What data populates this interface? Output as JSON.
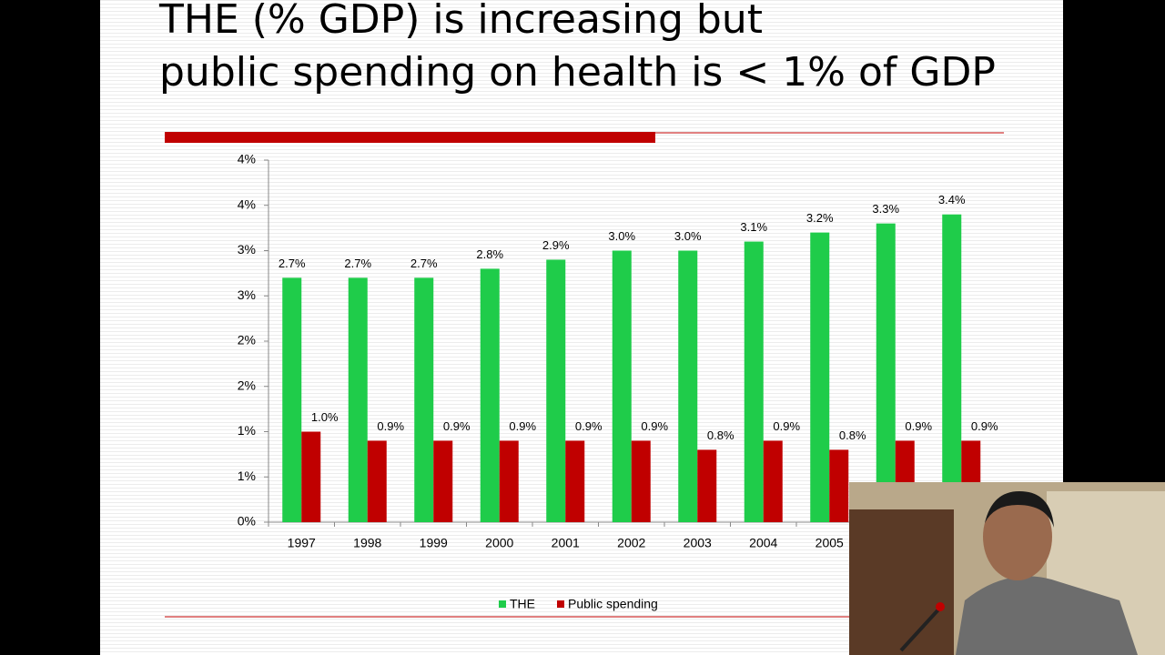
{
  "chart_data": {
    "type": "bar",
    "title": "THE (% GDP) is increasing but public spending on health is < 1% of GDP",
    "categories": [
      "1997",
      "1998",
      "1999",
      "2000",
      "2001",
      "2002",
      "2003",
      "2004",
      "2005",
      null,
      null
    ],
    "series": [
      {
        "name": "THE",
        "color": "#1fcc4a",
        "values": [
          2.7,
          2.7,
          2.7,
          2.8,
          2.9,
          3.0,
          3.0,
          3.1,
          3.2,
          3.3,
          3.4
        ],
        "value_labels": [
          "2.7%",
          "2.7%",
          "2.7%",
          "2.8%",
          "2.9%",
          "3.0%",
          "3.0%",
          "3.1%",
          "3.2%",
          "3.3%",
          "3.4%"
        ]
      },
      {
        "name": "Public spending",
        "color": "#c00000",
        "values": [
          1.0,
          0.9,
          0.9,
          0.9,
          0.9,
          0.9,
          0.8,
          0.9,
          0.8,
          0.9,
          0.9
        ],
        "value_labels": [
          "1.0%",
          "0.9%",
          "0.9%",
          "0.9%",
          "0.9%",
          "0.9%",
          "0.8%",
          "0.9%",
          "0.8%",
          "0.9%",
          "0.9%"
        ]
      }
    ],
    "ylim": [
      0,
      4
    ],
    "yticks": [
      {
        "value": 0,
        "label": "0%"
      },
      {
        "value": 0.5,
        "label": "1%"
      },
      {
        "value": 1,
        "label": "1%"
      },
      {
        "value": 1.5,
        "label": "2%"
      },
      {
        "value": 2,
        "label": "2%"
      },
      {
        "value": 2.5,
        "label": "3%"
      },
      {
        "value": 3,
        "label": "3%"
      },
      {
        "value": 3.5,
        "label": "4%"
      },
      {
        "value": 4,
        "label": "4%"
      }
    ],
    "legend": "bottom"
  }
}
